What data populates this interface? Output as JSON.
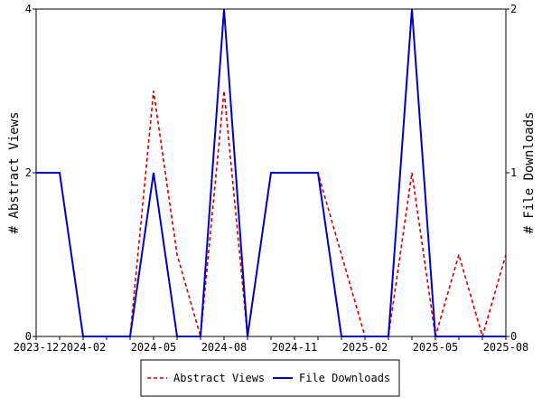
{
  "chart_data": {
    "type": "line",
    "x": [
      "2023-12",
      "2024-01",
      "2024-02",
      "2024-03",
      "2024-04",
      "2024-05",
      "2024-06",
      "2024-07",
      "2024-08",
      "2024-09",
      "2024-10",
      "2024-11",
      "2024-12",
      "2025-01",
      "2025-02",
      "2025-03",
      "2025-04",
      "2025-05",
      "2025-06",
      "2025-07",
      "2025-08"
    ],
    "x_tick_labels": [
      "2023-12",
      "2024-02",
      "2024-05",
      "2024-08",
      "2024-11",
      "2025-02",
      "2025-05",
      "2025-08"
    ],
    "y_left_label": "# Abstract Views",
    "y_right_label": "# File Downloads",
    "y_left_ticks": [
      "0",
      "2",
      "4"
    ],
    "y_right_ticks": [
      "0",
      "1",
      "2"
    ],
    "ylim_left": [
      0,
      4
    ],
    "ylim_right": [
      0,
      2
    ],
    "series": [
      {
        "name": "Abstract Views",
        "axis": "left",
        "color": "#cc0000",
        "dash": "dashed",
        "values": [
          2,
          2,
          0,
          0,
          0,
          3,
          1,
          0,
          3,
          0,
          2,
          2,
          2,
          1,
          0,
          0,
          2,
          0,
          1,
          0,
          1
        ]
      },
      {
        "name": "File Downloads",
        "axis": "right",
        "color": "#0000bb",
        "dash": "solid",
        "values": [
          1,
          1,
          0,
          0,
          0,
          1,
          0,
          0,
          2,
          0,
          1,
          1,
          1,
          0,
          0,
          0,
          2,
          0,
          0,
          0,
          0
        ]
      }
    ],
    "legend": "bottom-center"
  }
}
